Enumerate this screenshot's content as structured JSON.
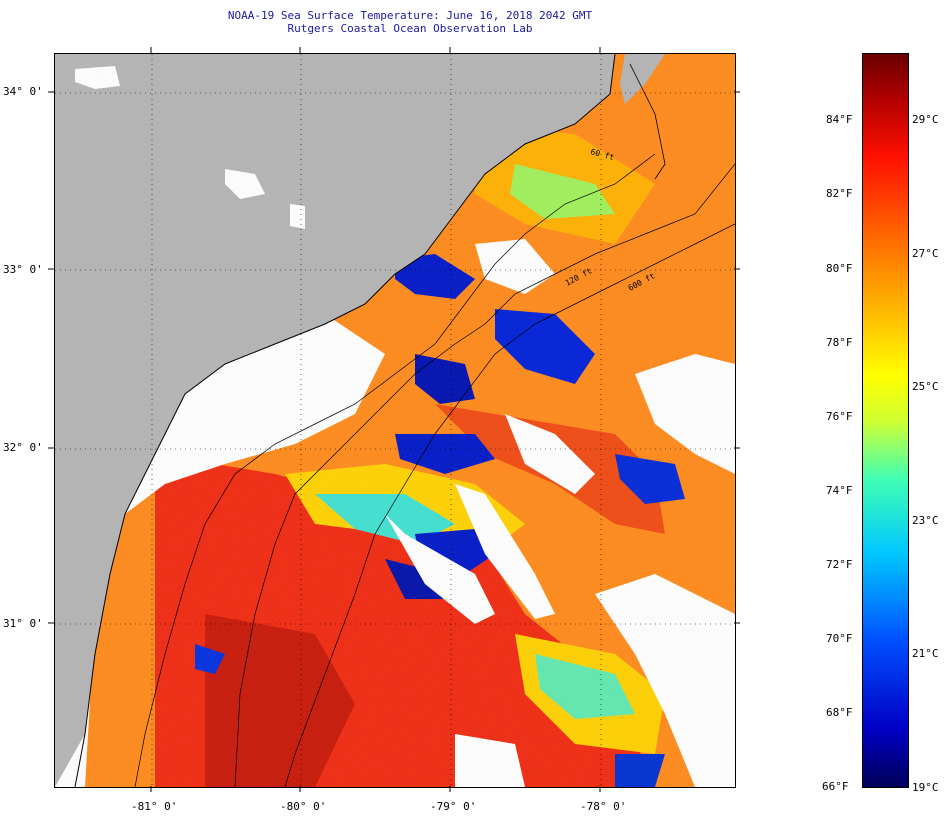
{
  "header": {
    "title_line1": "NOAA-19 Sea Surface Temperature:  June 16, 2018 2042 GMT",
    "title_line2": "Rutgers Coastal Ocean Observation Lab"
  },
  "map": {
    "lat_labels": [
      "34° 0'",
      "33° 0'",
      "32° 0'",
      "31° 0'"
    ],
    "lon_labels": [
      "-81° 0'",
      "-80° 0'",
      "-79° 0'",
      "-78° 0'"
    ],
    "isobath_labels": [
      "120 ft",
      "600 ft",
      "60 ft"
    ],
    "colors": {
      "land": "#b4b4b4",
      "cloud": "#ffffff",
      "coastline": "#000000"
    }
  },
  "colorbar": {
    "f_labels": [
      "84°F",
      "82°F",
      "80°F",
      "78°F",
      "76°F",
      "74°F",
      "72°F",
      "70°F",
      "68°F",
      "66°F"
    ],
    "c_labels": [
      "29°C",
      "27°C",
      "25°C",
      "23°C",
      "21°C",
      "19°C"
    ],
    "min_c": 19,
    "max_c": 30
  }
}
